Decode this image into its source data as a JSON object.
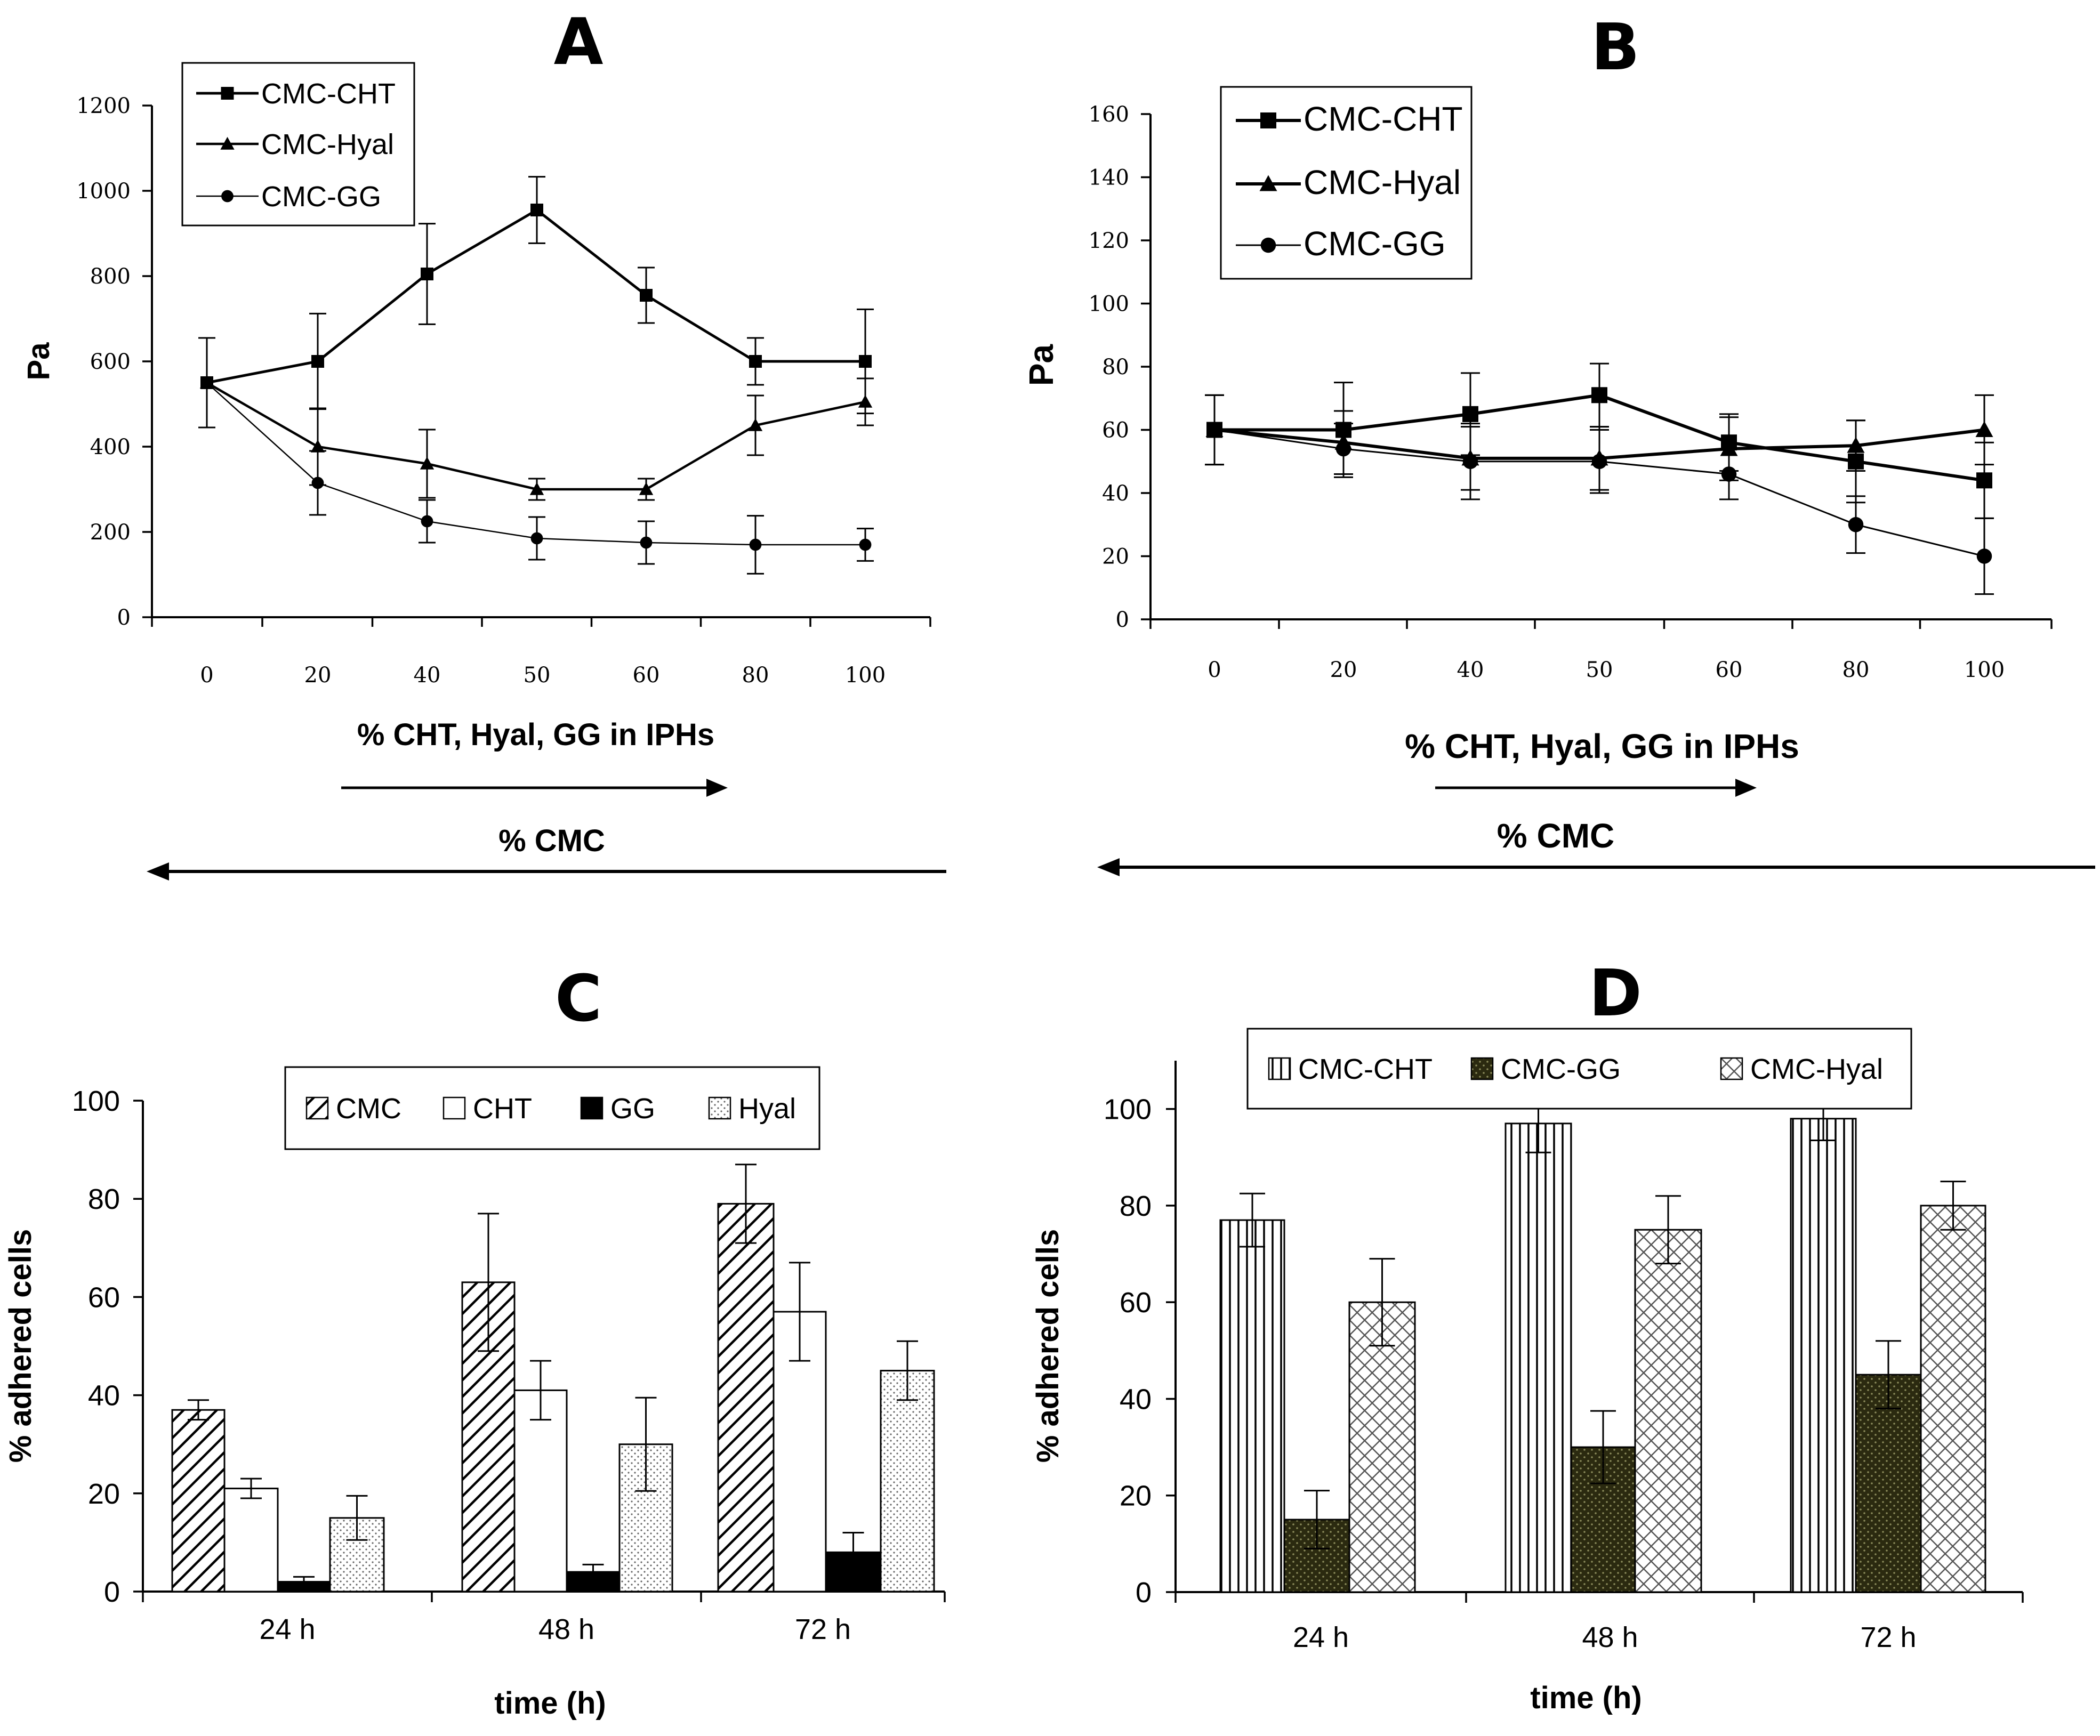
{
  "chart_data": [
    {
      "panel": "A",
      "type": "line",
      "ylabel": "Pa",
      "xlabel": "% CHT, Hyal, GG in IPHs",
      "secondary_xlabel": "% CMC",
      "categories": [
        "0",
        "20",
        "40",
        "50",
        "60",
        "80",
        "100"
      ],
      "ylim": [
        0,
        1200
      ],
      "yticks": [
        0,
        200,
        400,
        600,
        800,
        1000,
        1200
      ],
      "legend_position": "top-left",
      "series": [
        {
          "name": "CMC-CHT",
          "marker": "square",
          "values": [
            550,
            600,
            805,
            955,
            755,
            600,
            600
          ],
          "errors": [
            105,
            112,
            118,
            78,
            65,
            55,
            122
          ]
        },
        {
          "name": "CMC-Hyal",
          "marker": "triangle",
          "values": [
            550,
            400,
            360,
            300,
            300,
            450,
            505
          ],
          "errors": [
            105,
            90,
            80,
            25,
            25,
            70,
            55
          ]
        },
        {
          "name": "CMC-GG",
          "marker": "circle",
          "values": [
            550,
            315,
            225,
            185,
            175,
            170,
            170
          ],
          "errors": [
            105,
            75,
            50,
            50,
            50,
            68,
            38
          ]
        }
      ]
    },
    {
      "panel": "B",
      "type": "line",
      "ylabel": "Pa",
      "xlabel": "% CHT, Hyal, GG in IPHs",
      "secondary_xlabel": "% CMC",
      "categories": [
        "0",
        "20",
        "40",
        "50",
        "60",
        "80",
        "100"
      ],
      "ylim": [
        0,
        160
      ],
      "yticks": [
        0,
        20,
        40,
        60,
        80,
        100,
        120,
        140,
        160
      ],
      "legend_position": "top-left",
      "series": [
        {
          "name": "CMC-CHT",
          "marker": "square",
          "values": [
            60,
            60,
            65,
            71,
            56,
            50,
            44
          ],
          "errors": [
            11,
            15,
            13,
            10,
            9,
            13,
            12
          ]
        },
        {
          "name": "CMC-Hyal",
          "marker": "triangle",
          "values": [
            60,
            56,
            51,
            51,
            54,
            55,
            60
          ],
          "errors": [
            11,
            10,
            10,
            10,
            10,
            8,
            11
          ]
        },
        {
          "name": "CMC-GG",
          "marker": "circle",
          "values": [
            60,
            54,
            50,
            50,
            46,
            30,
            20
          ],
          "errors": [
            11,
            8,
            12,
            10,
            8,
            9,
            12
          ]
        }
      ]
    },
    {
      "panel": "C",
      "type": "bar",
      "ylabel": "% adhered cells",
      "xlabel": "time (h)",
      "categories": [
        "24 h",
        "48 h",
        "72 h"
      ],
      "ylim": [
        0,
        100
      ],
      "yticks": [
        0,
        20,
        40,
        60,
        80,
        100
      ],
      "legend_position": "top-center",
      "series": [
        {
          "name": "CMC",
          "pattern": "diagonal-hatch",
          "values": [
            37,
            63,
            79
          ],
          "errors": [
            2,
            14,
            8
          ]
        },
        {
          "name": "CHT",
          "pattern": "white",
          "values": [
            21,
            41,
            57
          ],
          "errors": [
            2,
            6,
            10
          ]
        },
        {
          "name": "GG",
          "pattern": "black",
          "values": [
            2,
            4,
            8
          ],
          "errors": [
            1,
            1.5,
            4
          ]
        },
        {
          "name": "Hyal",
          "pattern": "dots",
          "values": [
            15,
            30,
            45
          ],
          "errors": [
            4.5,
            9.5,
            6
          ]
        }
      ]
    },
    {
      "panel": "D",
      "type": "bar",
      "ylabel": "% adhered cells",
      "xlabel": "time (h)",
      "categories": [
        "24 h",
        "48 h",
        "72 h"
      ],
      "ylim": [
        0,
        110
      ],
      "yticks": [
        0,
        20,
        40,
        60,
        80,
        100
      ],
      "legend_position": "top-center",
      "series": [
        {
          "name": "CMC-CHT",
          "pattern": "vertical-lines",
          "values": [
            77,
            97,
            98
          ],
          "errors": [
            5.5,
            6,
            4.5
          ]
        },
        {
          "name": "CMC-GG",
          "pattern": "dark-olive-dots",
          "values": [
            15,
            30,
            45
          ],
          "errors": [
            6,
            7.5,
            7
          ]
        },
        {
          "name": "CMC-Hyal",
          "pattern": "crosshatch",
          "values": [
            60,
            75,
            80
          ],
          "errors": [
            9,
            7,
            5
          ]
        }
      ]
    }
  ]
}
